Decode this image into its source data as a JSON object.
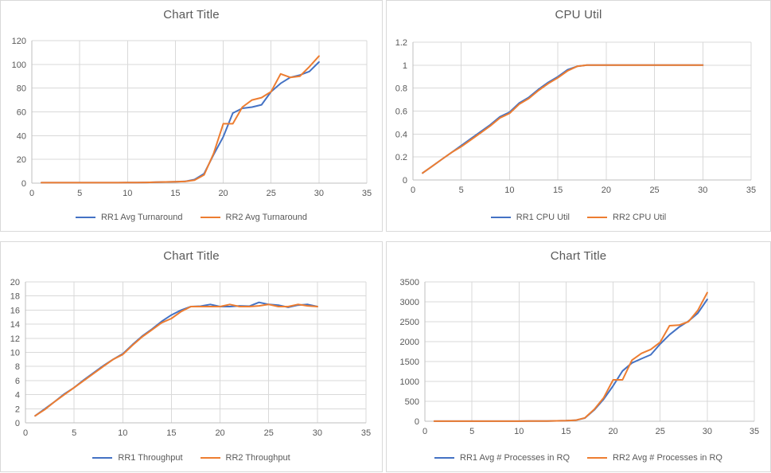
{
  "colors": {
    "series1": "#4472C4",
    "series2": "#ED7D31",
    "gridline": "#D9D9D9",
    "axis_line": "#BFBFBF",
    "text": "#595959",
    "panel_border": "#D9D9D9",
    "background": "#FFFFFF"
  },
  "chart_data": [
    {
      "type": "line",
      "title": "Chart Title",
      "xlabel": "",
      "ylabel": "",
      "xlim": [
        0,
        35
      ],
      "xticks": [
        0,
        5,
        10,
        15,
        20,
        25,
        30,
        35
      ],
      "ylim": [
        0,
        120
      ],
      "yticks": [
        0,
        20,
        40,
        60,
        80,
        100,
        120
      ],
      "ytick_labels": [
        "0",
        "20",
        "40",
        "60",
        "80",
        "100",
        "120"
      ],
      "grid": true,
      "legend_position": "bottom",
      "x": [
        1,
        2,
        3,
        4,
        5,
        6,
        7,
        8,
        9,
        10,
        11,
        12,
        13,
        14,
        15,
        16,
        17,
        18,
        19,
        20,
        21,
        22,
        23,
        24,
        25,
        26,
        27,
        28,
        29,
        30
      ],
      "series": [
        {
          "name": "RR1 Avg Turnaround",
          "color": "#4472C4",
          "values": [
            0.4,
            0.4,
            0.4,
            0.4,
            0.4,
            0.4,
            0.4,
            0.4,
            0.4,
            0.5,
            0.5,
            0.6,
            0.8,
            1,
            1.2,
            1.5,
            3,
            8,
            24,
            39,
            59,
            63,
            64,
            66,
            77,
            84,
            89,
            91,
            94,
            102
          ]
        },
        {
          "name": "RR2 Avg Turnaround",
          "color": "#ED7D31",
          "values": [
            0.4,
            0.4,
            0.4,
            0.4,
            0.4,
            0.4,
            0.4,
            0.4,
            0.4,
            0.5,
            0.5,
            0.6,
            0.8,
            1,
            1.2,
            1.4,
            2.5,
            7,
            25,
            50,
            50,
            64,
            70,
            72,
            77,
            92,
            89,
            90,
            98,
            107
          ]
        }
      ]
    },
    {
      "type": "line",
      "title": "CPU Util",
      "xlabel": "",
      "ylabel": "",
      "xlim": [
        0,
        35
      ],
      "xticks": [
        0,
        5,
        10,
        15,
        20,
        25,
        30,
        35
      ],
      "ylim": [
        0,
        1.2
      ],
      "yticks": [
        0,
        0.2,
        0.4,
        0.6,
        0.8,
        1,
        1.2
      ],
      "ytick_labels": [
        "0",
        "0.2",
        "0.4",
        "0.6",
        "0.8",
        "1",
        "1.2"
      ],
      "grid": true,
      "legend_position": "bottom",
      "x": [
        1,
        2,
        3,
        4,
        5,
        6,
        7,
        8,
        9,
        10,
        11,
        12,
        13,
        14,
        15,
        16,
        17,
        18,
        19,
        20,
        21,
        22,
        23,
        24,
        25,
        26,
        27,
        28,
        29,
        30
      ],
      "series": [
        {
          "name": "RR1 CPU Util",
          "color": "#4472C4",
          "values": [
            0.06,
            0.12,
            0.18,
            0.24,
            0.3,
            0.36,
            0.42,
            0.48,
            0.55,
            0.59,
            0.67,
            0.72,
            0.79,
            0.85,
            0.9,
            0.96,
            0.99,
            1,
            1,
            1,
            1,
            1,
            1,
            1,
            1,
            1,
            1,
            1,
            1,
            1
          ]
        },
        {
          "name": "RR2 CPU Util",
          "color": "#ED7D31",
          "values": [
            0.06,
            0.12,
            0.18,
            0.24,
            0.29,
            0.35,
            0.41,
            0.47,
            0.54,
            0.58,
            0.66,
            0.71,
            0.78,
            0.84,
            0.89,
            0.95,
            0.99,
            1,
            1,
            1,
            1,
            1,
            1,
            1,
            1,
            1,
            1,
            1,
            1,
            1
          ]
        }
      ]
    },
    {
      "type": "line",
      "title": "Chart Title",
      "xlabel": "",
      "ylabel": "",
      "xlim": [
        0,
        35
      ],
      "xticks": [
        0,
        5,
        10,
        15,
        20,
        25,
        30,
        35
      ],
      "ylim": [
        0,
        20
      ],
      "yticks": [
        0,
        2,
        4,
        6,
        8,
        10,
        12,
        14,
        16,
        18,
        20
      ],
      "ytick_labels": [
        "0",
        "2",
        "4",
        "6",
        "8",
        "10",
        "12",
        "14",
        "16",
        "18",
        "20"
      ],
      "grid": true,
      "legend_position": "bottom",
      "x": [
        1,
        2,
        3,
        4,
        5,
        6,
        7,
        8,
        9,
        10,
        11,
        12,
        13,
        14,
        15,
        16,
        17,
        18,
        19,
        20,
        21,
        22,
        23,
        24,
        25,
        26,
        27,
        28,
        29,
        30
      ],
      "series": [
        {
          "name": "RR1 Throughput",
          "color": "#4472C4",
          "values": [
            1,
            2,
            3,
            4.1,
            5,
            6.1,
            7.1,
            8.1,
            9,
            9.8,
            11.1,
            12.3,
            13.3,
            14.4,
            15.3,
            16,
            16.5,
            16.55,
            16.8,
            16.5,
            16.5,
            16.6,
            16.55,
            17.1,
            16.8,
            16.7,
            16.4,
            16.7,
            16.8,
            16.5
          ]
        },
        {
          "name": "RR2 Throughput",
          "color": "#ED7D31",
          "values": [
            1,
            1.9,
            3,
            4,
            5,
            6,
            7,
            8,
            9,
            9.7,
            11,
            12.2,
            13.2,
            14.2,
            14.8,
            15.8,
            16.5,
            16.5,
            16.5,
            16.5,
            16.8,
            16.5,
            16.5,
            16.6,
            16.8,
            16.5,
            16.5,
            16.8,
            16.6,
            16.5
          ]
        }
      ]
    },
    {
      "type": "line",
      "title": "Chart Title",
      "xlabel": "",
      "ylabel": "",
      "xlim": [
        0,
        35
      ],
      "xticks": [
        0,
        5,
        10,
        15,
        20,
        25,
        30,
        35
      ],
      "ylim": [
        0,
        3500
      ],
      "yticks": [
        0,
        500,
        1000,
        1500,
        2000,
        2500,
        3000,
        3500
      ],
      "ytick_labels": [
        "0",
        "500",
        "1000",
        "1500",
        "2000",
        "2500",
        "3000",
        "3500"
      ],
      "grid": true,
      "legend_position": "bottom",
      "x": [
        1,
        2,
        3,
        4,
        5,
        6,
        7,
        8,
        9,
        10,
        11,
        12,
        13,
        14,
        15,
        16,
        17,
        18,
        19,
        20,
        21,
        22,
        23,
        24,
        25,
        26,
        27,
        28,
        29,
        30
      ],
      "series": [
        {
          "name": "RR1 Avg # Processes in RQ",
          "color": "#4472C4",
          "values": [
            2,
            2,
            2,
            2,
            2,
            2,
            2,
            2,
            2,
            2,
            3,
            4,
            6,
            10,
            15,
            25,
            80,
            285,
            555,
            890,
            1265,
            1465,
            1570,
            1670,
            1940,
            2175,
            2365,
            2515,
            2715,
            3060
          ]
        },
        {
          "name": "RR2 Avg # Processes in RQ",
          "color": "#ED7D31",
          "values": [
            2,
            2,
            2,
            2,
            2,
            2,
            2,
            2,
            2,
            2,
            3,
            4,
            6,
            10,
            15,
            25,
            85,
            300,
            590,
            1040,
            1040,
            1535,
            1705,
            1805,
            1985,
            2400,
            2415,
            2500,
            2785,
            3230
          ]
        }
      ]
    }
  ]
}
